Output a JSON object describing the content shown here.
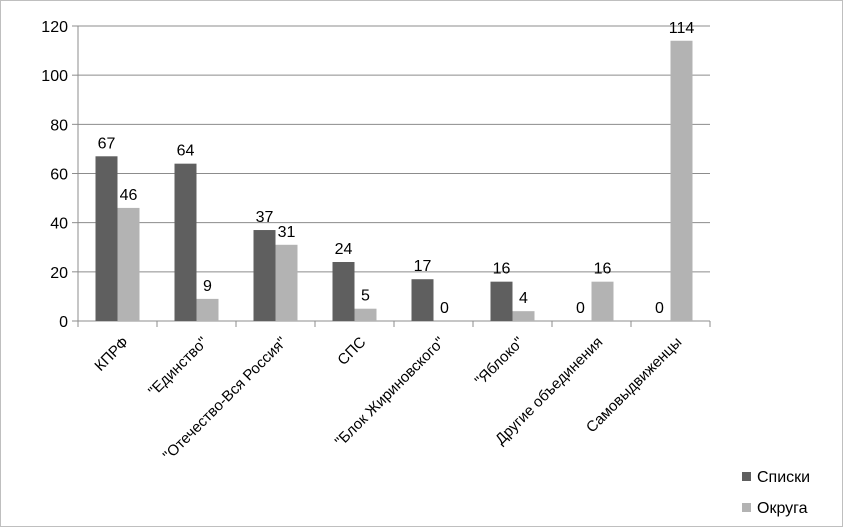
{
  "chart_data": {
    "type": "bar",
    "categories": [
      "КПРФ",
      "\"Единство\"",
      "\"Отечество-Вся Россия\"",
      "СПС",
      "\"Блок Жириновского\"",
      "\"Яблоко\"",
      "Другие объединения",
      "Самовыдвиженцы"
    ],
    "series": [
      {
        "name": "Списки",
        "color": "#5f5f5f",
        "values": [
          67,
          64,
          37,
          24,
          17,
          16,
          0,
          0
        ]
      },
      {
        "name": "Округа",
        "color": "#b3b3b3",
        "values": [
          46,
          9,
          31,
          5,
          0,
          4,
          16,
          114
        ]
      }
    ],
    "ylim": [
      0,
      120
    ],
    "yticks": [
      "0",
      "20",
      "40",
      "60",
      "80",
      "100",
      "120"
    ],
    "grid": true,
    "legend_position": "bottom-right",
    "title": "",
    "xlabel": "",
    "ylabel": ""
  }
}
